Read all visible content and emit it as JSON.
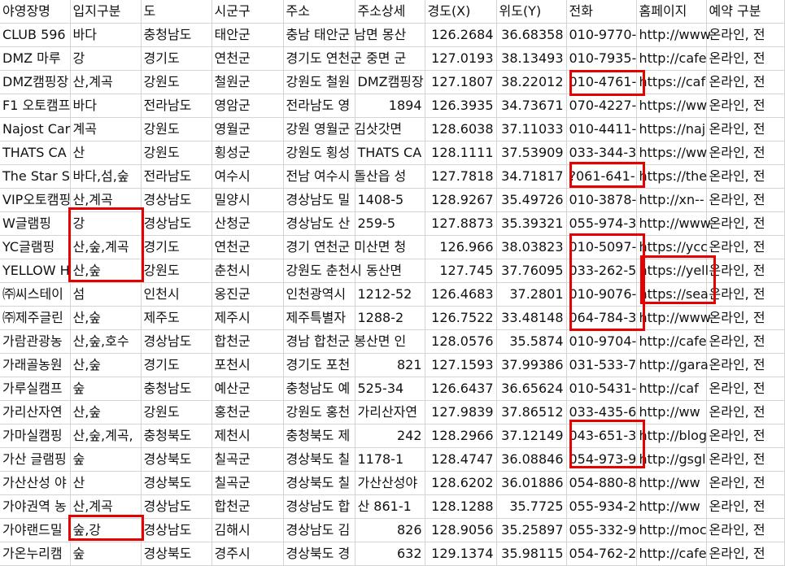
{
  "columns": [
    "야영장명",
    "입지구분",
    "도",
    "시군구",
    "주소",
    "주소상세",
    "경도(X)",
    "위도(Y)",
    "전화",
    "홈페이지",
    "예약 구분"
  ],
  "rows": [
    [
      "CLUB 596",
      "바다",
      "충청남도",
      "태안군",
      "충남 태안군 남면 몽산",
      "",
      "126.2684",
      "36.68358",
      "010-9770-",
      "http://www",
      "온라인, 전"
    ],
    [
      "DMZ 마루",
      "강",
      "경기도",
      "연천군",
      "경기도 연천군 중면 군",
      "",
      "127.0193",
      "38.13493",
      "010-7935-",
      "http://cafe",
      "온라인, 전"
    ],
    [
      "DMZ캠핑장",
      "산,계곡",
      "강원도",
      "철원군",
      "강원도 철원",
      "DMZ캠핑장",
      "127.1807",
      "38.22012",
      "010-4761-",
      "https://caf",
      "온라인, 전"
    ],
    [
      "F1 오토캠프",
      "바다",
      "전라남도",
      "영암군",
      "전라남도 영",
      "1894",
      "126.3935",
      "34.73671",
      "070-4227-",
      "https://ww",
      "온라인, 전"
    ],
    [
      "Najost Car",
      "계곡",
      "강원도",
      "영월군",
      "강원 영월군 김삿갓면",
      "",
      "128.6038",
      "37.11033",
      "010-4411-",
      "https://naj",
      "온라인, 전"
    ],
    [
      "THATS CA",
      "산",
      "강원도",
      "횡성군",
      "강원도 횡성",
      "THATS CA",
      "128.1111",
      "37.53909",
      "033-344-3",
      "https://ww",
      "온라인, 전"
    ],
    [
      "The Star S",
      "바다,섬,숲",
      "전라남도",
      "여수시",
      "전남 여수시 돌산읍 성",
      "",
      "127.7818",
      "34.71817",
      "?061-641-",
      "https://the",
      "온라인, 전"
    ],
    [
      "VIP오토캠핑",
      "산,계곡",
      "경상남도",
      "밀양시",
      "경상남도 밀",
      "1408-5",
      "128.9267",
      "35.49726",
      "010-3878-",
      "http://xn--",
      "온라인, 전"
    ],
    [
      "W글램핑",
      "강",
      "경상남도",
      "산청군",
      "경상남도 산",
      "259-5",
      "127.8873",
      "35.39321",
      "055-974-3",
      "http://www",
      "온라인, 전"
    ],
    [
      "YC글램핑",
      "산,숲,계곡",
      "경기도",
      "연천군",
      "경기 연천군 미산면 청",
      "",
      "126.966",
      "38.03823",
      "010-5097-",
      "https://ycc",
      "온라인, 전"
    ],
    [
      "YELLOW H",
      "산,숲",
      "강원도",
      "춘천시",
      "강원도 춘천시 동산면",
      "",
      "127.745",
      "37.76095",
      "033-262-5",
      "https://yell",
      "온라인, 전"
    ],
    [
      "㈜씨스테이",
      "섬",
      "인천시",
      "옹진군",
      "인천광역시",
      "1212-52",
      "126.4683",
      "37.2801",
      "010-9076-",
      "https://sea",
      "온라인, 전"
    ],
    [
      "㈜제주글린",
      "산,숲",
      "제주도",
      "제주시",
      "제주특별자",
      "1288-2",
      "126.7522",
      "33.48148",
      "064-784-3",
      "http://www",
      "온라인, 전"
    ],
    [
      "가람관광농",
      "산,숲,호수",
      "경상남도",
      "합천군",
      "경남 합천군 봉산면 인",
      "",
      "128.0576",
      "35.5874",
      "010-9704-",
      "http://cafe",
      "온라인, 전"
    ],
    [
      "가래골농원",
      "산,숲",
      "경기도",
      "포천시",
      "경기도 포천",
      "821",
      "127.1593",
      "37.99386",
      "031-533-7",
      "http://gara",
      "온라인, 전"
    ],
    [
      "가루실캠프",
      "숲",
      "충청남도",
      "예산군",
      "충청남도 예",
      "525-34",
      "126.6437",
      "36.65624",
      "010-5431-",
      "http://caf",
      "온라인, 전"
    ],
    [
      "가리산자연",
      "산,숲",
      "강원도",
      "홍천군",
      "강원도 홍천",
      "가리산자연",
      "127.9839",
      "37.86512",
      "033-435-6",
      "http://ww",
      "온라인, 전"
    ],
    [
      "가마실캠핑",
      "산,숲,계곡,",
      "충청북도",
      "제천시",
      "충청북도 제",
      "242",
      "128.2966",
      "37.12149",
      "043-651-3",
      "http://blog",
      "온라인, 전"
    ],
    [
      "가산 글램핑",
      "숲",
      "경상북도",
      "칠곡군",
      "경상북도 칠",
      "1178-1",
      "128.4747",
      "36.08846",
      "054-973-9",
      "http://gsgl",
      "온라인, 전"
    ],
    [
      "가산산성 야",
      "산",
      "경상북도",
      "칠곡군",
      "경상북도 칠",
      "가산산성야",
      "128.6202",
      "36.01886",
      "054-880-8",
      "http://ww",
      "온라인, 전"
    ],
    [
      "가야권역 농",
      "산,계곡",
      "경상남도",
      "합천군",
      "경상남도 합",
      "산 861-1",
      "128.1288",
      "35.7725",
      "055-934-2",
      "http://ww",
      "온라인, 전"
    ],
    [
      "가야랜드밀",
      "숲,강",
      "경상남도",
      "김해시",
      "경상남도 김",
      "826",
      "128.9056",
      "35.25897",
      "055-332-9",
      "http://moc",
      "온라인, 전"
    ],
    [
      "가온누리캠",
      "숲",
      "경상북도",
      "경주시",
      "경상북도 경",
      "632",
      "129.1374",
      "35.98115",
      "054-762-2",
      "http://cafe",
      "온라인, 전"
    ]
  ],
  "highlight_color": "#e60000"
}
